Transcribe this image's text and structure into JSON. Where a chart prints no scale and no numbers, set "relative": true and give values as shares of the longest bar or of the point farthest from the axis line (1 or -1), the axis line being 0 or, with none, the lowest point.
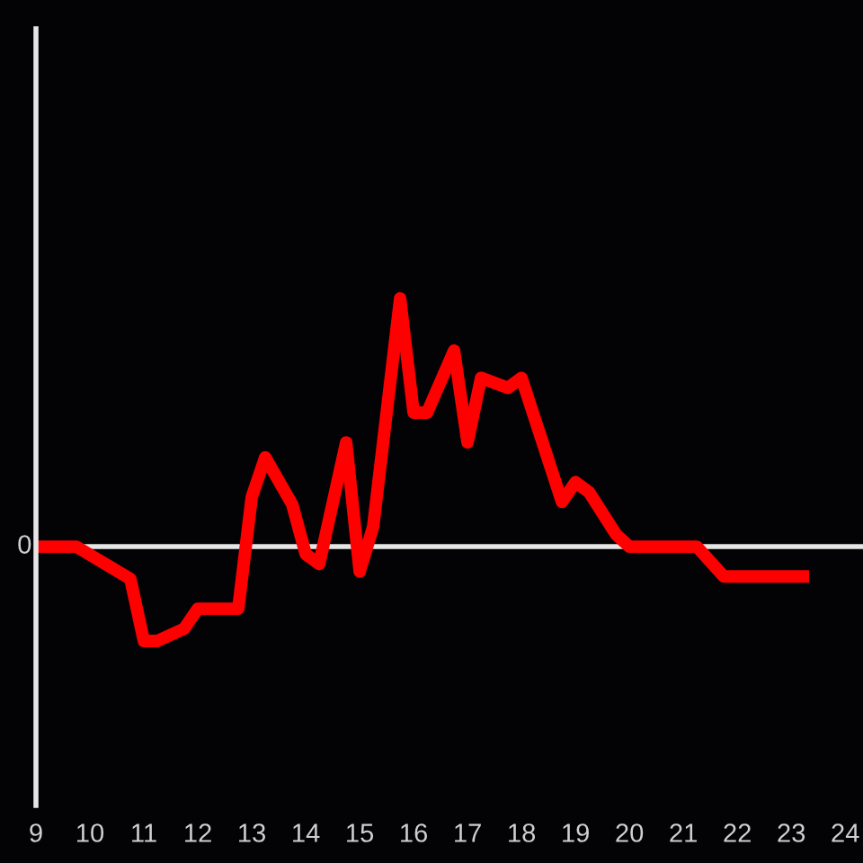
{
  "chart_data": {
    "type": "line",
    "relative": true,
    "color": "#ff0000",
    "x": [
      9,
      9.75,
      10.75,
      11,
      11.25,
      11.75,
      12,
      12.75,
      13,
      13.25,
      13.75,
      14,
      14.25,
      14.75,
      15,
      15.25,
      15.75,
      16,
      16.25,
      16.75,
      17,
      17.25,
      17.75,
      18,
      18.75,
      19,
      19.25,
      19.75,
      20,
      21.25,
      21.75,
      23.33
    ],
    "values": [
      0,
      0,
      -0.13,
      -0.38,
      -0.38,
      -0.33,
      -0.25,
      -0.25,
      0.2,
      0.36,
      0.17,
      -0.03,
      -0.07,
      0.42,
      -0.1,
      0.08,
      1,
      0.54,
      0.54,
      0.79,
      0.42,
      0.68,
      0.64,
      0.68,
      0.18,
      0.26,
      0.22,
      0.05,
      0,
      0,
      -0.12,
      -0.12
    ],
    "xlim": [
      9,
      24.33
    ],
    "xticks": [
      9,
      10,
      11,
      12,
      13,
      14,
      15,
      16,
      17,
      18,
      19,
      20,
      21,
      22,
      23,
      24
    ],
    "ref_lines": [
      {
        "axis": "y",
        "value": 0,
        "label": "0",
        "color": "#e6e6e6"
      }
    ],
    "tick_labels": "x",
    "grid": false
  }
}
